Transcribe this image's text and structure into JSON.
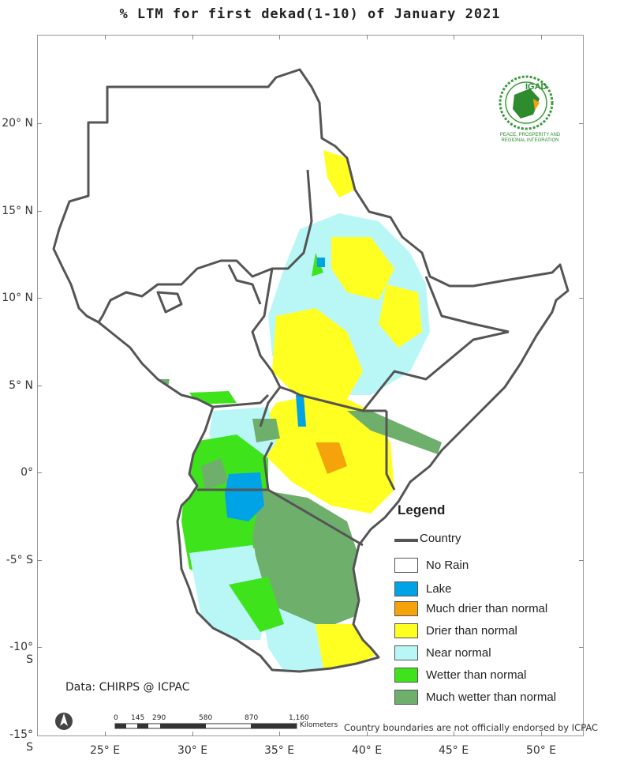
{
  "title": "% LTM for  first dekad(1-10)  of January 2021",
  "y_axis": [
    "20° N",
    "15° N",
    "10° N",
    "5° N",
    "0°",
    "-5° S",
    "-10° S",
    "-15° S"
  ],
  "x_axis": [
    "25° E",
    "30° E",
    "35° E",
    "40° E",
    "45° E",
    "50° E"
  ],
  "legend": {
    "title": "Legend",
    "country": "Country",
    "items": [
      {
        "label": "No Rain",
        "color": "#ffffff"
      },
      {
        "label": "Lake",
        "color": "#00a3e6"
      },
      {
        "label": "Much drier than normal",
        "color": "#f5a30a"
      },
      {
        "label": "Drier than normal",
        "color": "#ffff22"
      },
      {
        "label": "Near normal",
        "color": "#b9f7f7"
      },
      {
        "label": "Wetter than normal",
        "color": "#3fe31c"
      },
      {
        "label": "Much wetter than normal",
        "color": "#6faf6c"
      }
    ]
  },
  "data_source": "Data: CHIRPS @ ICPAC",
  "disclaimer": "Country boundaries are not officially endorsed by ICPAC",
  "scale": {
    "labels": [
      "0",
      "145",
      "290",
      "580",
      "870",
      "1,160"
    ],
    "unit": "Kilometers"
  },
  "logo": {
    "text": "IGAD",
    "tagline": "PEACE, PROSPERITY AND REGIONAL INTEGRATION"
  }
}
